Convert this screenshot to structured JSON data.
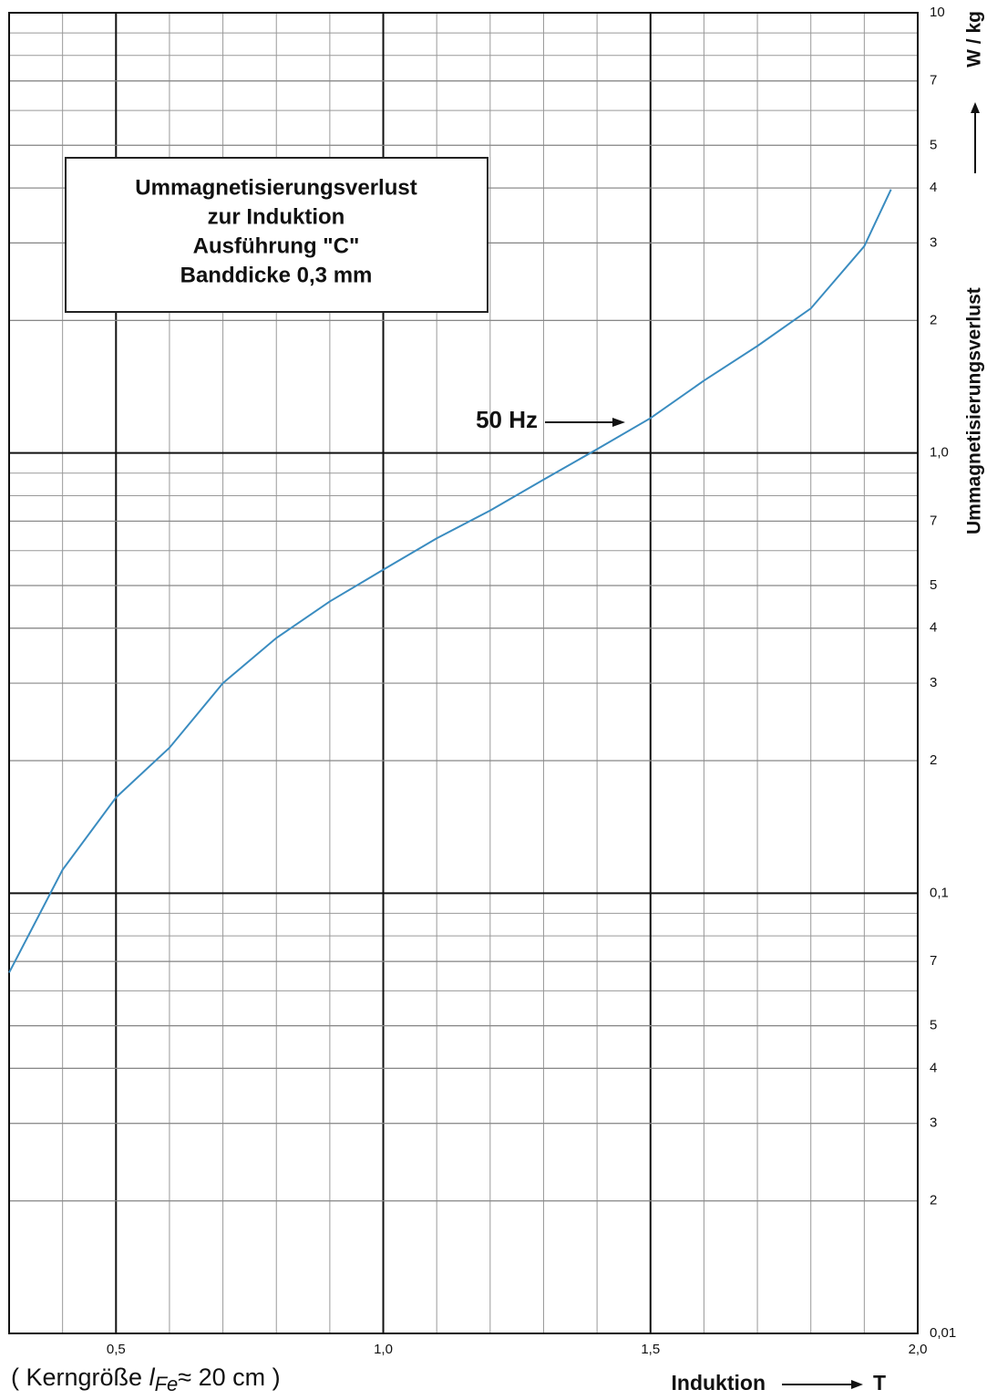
{
  "chart_data": {
    "type": "line",
    "title": [
      "Ummagnetisierungsverlust",
      "zur Induktion",
      "Ausführung \"C\"",
      "Banddicke 0,3 mm"
    ],
    "x": [
      0.3,
      0.4,
      0.5,
      0.6,
      0.7,
      0.8,
      0.9,
      1.0,
      1.1,
      1.2,
      1.3,
      1.4,
      1.5,
      1.6,
      1.7,
      1.8,
      1.9,
      1.95
    ],
    "series": [
      {
        "name": "50 Hz",
        "color": "#3a8cc0",
        "values": [
          0.066,
          0.113,
          0.165,
          0.214,
          0.3,
          0.38,
          0.46,
          0.543,
          0.64,
          0.74,
          0.87,
          1.02,
          1.2,
          1.46,
          1.75,
          2.13,
          2.95,
          3.97
        ]
      }
    ],
    "xlim": [
      0.3,
      2.0
    ],
    "xticks": [
      {
        "value": 0.5,
        "label": "0,5"
      },
      {
        "value": 1.0,
        "label": "1,0"
      },
      {
        "value": 1.5,
        "label": "1,5"
      },
      {
        "value": 2.0,
        "label": "2,0"
      }
    ],
    "ylim": [
      0.01,
      10
    ],
    "ylog": true,
    "yticks": [
      10,
      7,
      5,
      4,
      3,
      2,
      {
        "value": 1,
        "label": "1,0"
      },
      {
        "value": 0.7,
        "label": "7"
      },
      {
        "value": 0.5,
        "label": "5"
      },
      {
        "value": 0.4,
        "label": "4"
      },
      {
        "value": 0.3,
        "label": "3"
      },
      {
        "value": 0.2,
        "label": "2"
      },
      {
        "value": 0.1,
        "label": "0,1"
      },
      {
        "value": 0.07,
        "label": "7"
      },
      {
        "value": 0.05,
        "label": "5"
      },
      {
        "value": 0.04,
        "label": "4"
      },
      {
        "value": 0.03,
        "label": "3"
      },
      {
        "value": 0.02,
        "label": "2"
      },
      {
        "value": 0.01,
        "label": "0,01"
      }
    ],
    "ylabel": "Ummagnetisierungsverlust",
    "yunit": "W / kg",
    "xlabel": "Induktion",
    "xunit": "T",
    "note": [
      "( Kerngröße ",
      "l",
      "Fe",
      "≈ 20 cm )"
    ],
    "grid": true
  }
}
